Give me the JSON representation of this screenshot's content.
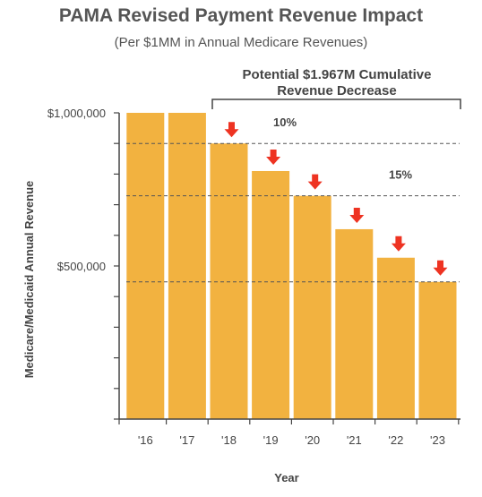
{
  "title": "PAMA Revised Payment Revenue Impact",
  "subtitle": "(Per $1MM in  Annual Medicare Revenues)",
  "chart_data": {
    "type": "bar",
    "categories": [
      "'16",
      "'17",
      "'18",
      "'19",
      "'20",
      "'21",
      "'22",
      "'23"
    ],
    "values": [
      1000000,
      1000000,
      900000,
      810000,
      729000,
      620000,
      527000,
      448000
    ],
    "decrease_arrows": [
      false,
      false,
      true,
      true,
      true,
      true,
      true,
      true
    ],
    "xlabel": "Year",
    "ylabel": "Medicare/Medicaid  Annual Revenue",
    "ylim": [
      0,
      1000000
    ],
    "y_tick_labels": [
      {
        "value": 1000000,
        "label": "$1,000,000"
      },
      {
        "value": 500000,
        "label": "$500,000"
      }
    ],
    "reference_lines": [
      {
        "value": 900000,
        "label": "10%"
      },
      {
        "value": 729000,
        "label": "15%"
      },
      {
        "value": 448000,
        "label": ""
      }
    ],
    "bracket_annotation": {
      "line1": "Potential $1.967M Cumulative",
      "line2": "Revenue Decrease"
    },
    "bar_color": "#F2B240",
    "arrow_color": "#EE3322",
    "grid": false
  }
}
